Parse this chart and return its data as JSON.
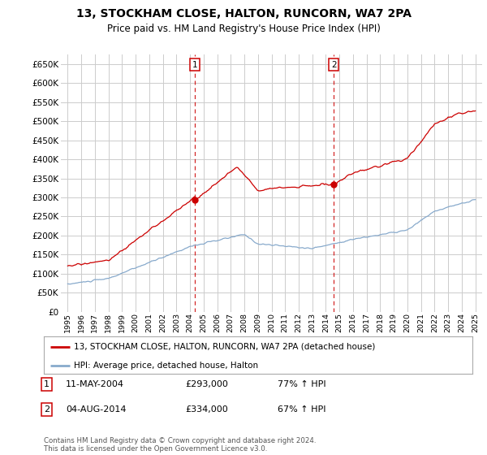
{
  "title": "13, STOCKHAM CLOSE, HALTON, RUNCORN, WA7 2PA",
  "subtitle": "Price paid vs. HM Land Registry's House Price Index (HPI)",
  "legend_label_red": "13, STOCKHAM CLOSE, HALTON, RUNCORN, WA7 2PA (detached house)",
  "legend_label_blue": "HPI: Average price, detached house, Halton",
  "transaction1_date": "11-MAY-2004",
  "transaction1_price": "£293,000",
  "transaction1_hpi": "77% ↑ HPI",
  "transaction2_date": "04-AUG-2014",
  "transaction2_price": "£334,000",
  "transaction2_hpi": "67% ↑ HPI",
  "footnote": "Contains HM Land Registry data © Crown copyright and database right 2024.\nThis data is licensed under the Open Government Licence v3.0.",
  "red_color": "#cc0000",
  "blue_color": "#88aacc",
  "dashed_color": "#cc0000",
  "grid_color": "#cccccc",
  "bg_color": "#ffffff",
  "ylim": [
    0,
    675000
  ],
  "yticks": [
    0,
    50000,
    100000,
    150000,
    200000,
    250000,
    300000,
    350000,
    400000,
    450000,
    500000,
    550000,
    600000,
    650000
  ],
  "vline1_x": 2004.37,
  "vline2_x": 2014.58,
  "point1_y": 293000,
  "point2_y": 334000,
  "xmin": 1994.5,
  "xmax": 2025.5
}
